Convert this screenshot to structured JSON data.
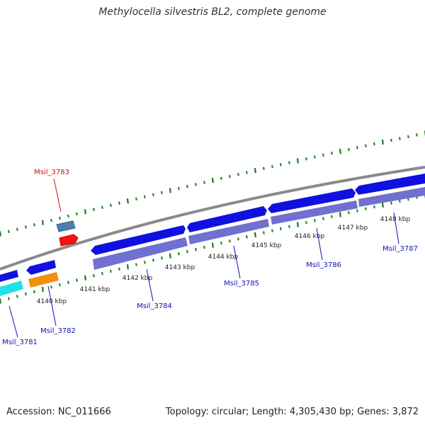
{
  "title": "Methylocella silvestris BL2, complete genome",
  "footer": {
    "accession": "Accession: NC_011666",
    "summary": "Topology: circular; Length: 4,305,430 bp; Genes: 3,872"
  },
  "colors": {
    "backbone": "#8a8a8a",
    "forward_gene": "#1010e0",
    "forward_gene_light": "#7070d0",
    "highlight_gene": "#ff1010",
    "highlight_label": "#d01010",
    "tick_green": "#1a7a1a",
    "label_blue": "#1010b0",
    "cyan_feature": "#20e0e8",
    "orange_feature": "#f09010",
    "steel_feature": "#4a7fb0"
  },
  "scale_labels": [
    "4140 kbp",
    "4141 kbp",
    "4142 kbp",
    "4143 kbp",
    "4144 kbp",
    "4145 kbp",
    "4146 kbp",
    "4147 kbp",
    "4148 kbp"
  ],
  "gene_labels": [
    "Msil_3781",
    "Msil_3782",
    "Msil_3783",
    "Msil_3784",
    "Msil_3785",
    "Msil_3786",
    "Msil_3787"
  ]
}
